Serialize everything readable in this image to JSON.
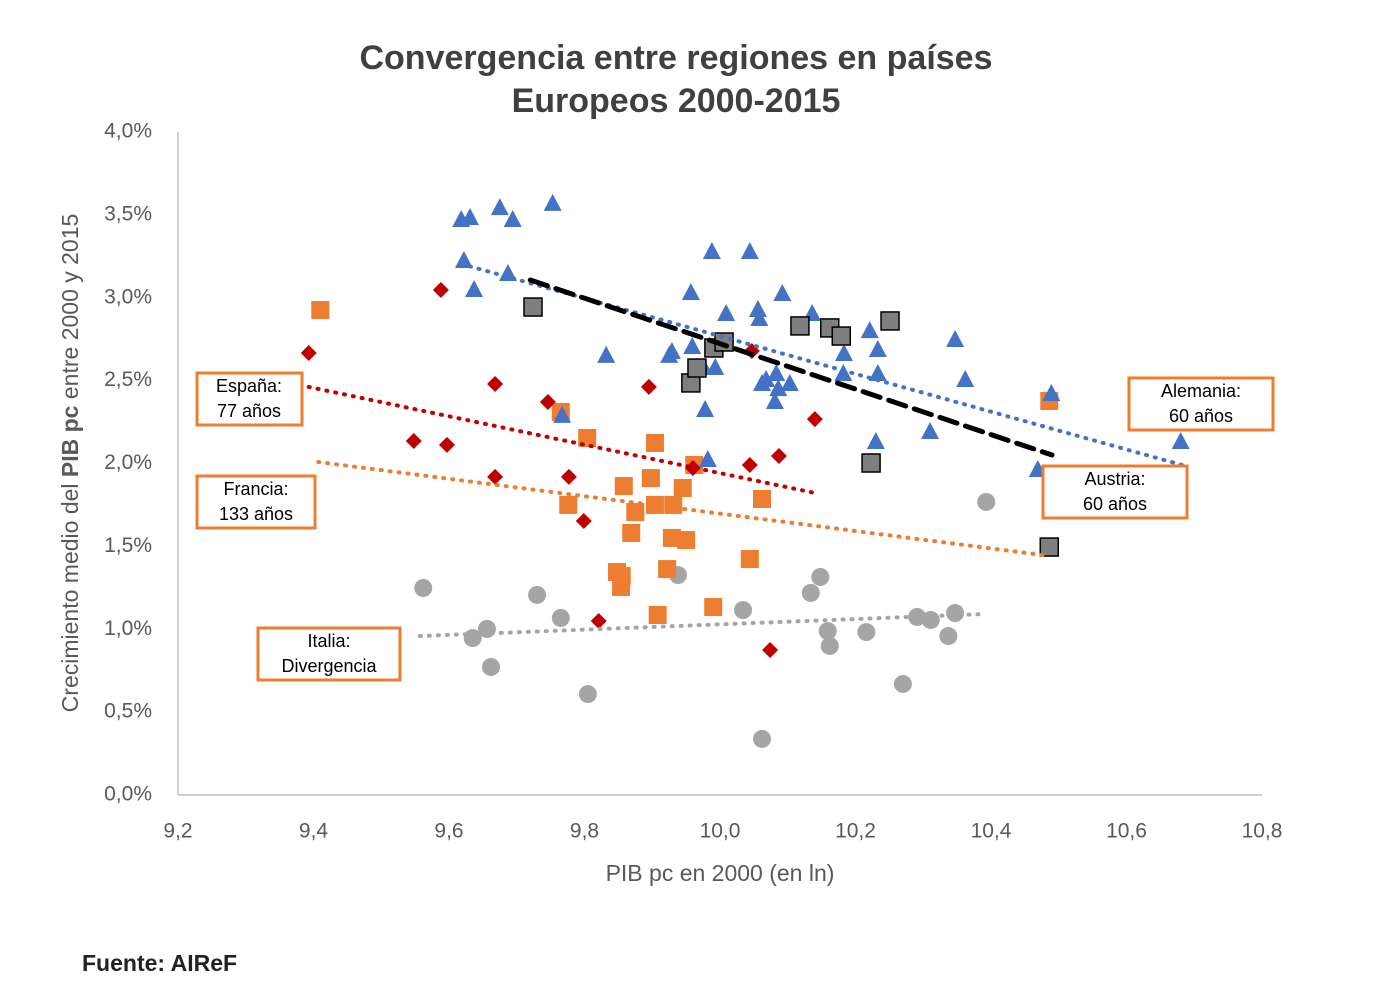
{
  "chart_data": {
    "type": "scatter",
    "title": [
      "Convergencia entre regiones en países",
      "Europeos 2000-2015"
    ],
    "xlabel": "PIB pc en 2000 (en ln)",
    "ylabel": [
      "Crecimiento medio del ",
      "PIB pc",
      " entre 2000 y 2015"
    ],
    "source": "Fuente: AIReF",
    "xlim": [
      9.2,
      10.8
    ],
    "xticks": [
      {
        "value": 9.2,
        "label": "9,2"
      },
      {
        "value": 9.4,
        "label": "9,4"
      },
      {
        "value": 9.6,
        "label": "9,6"
      },
      {
        "value": 9.8,
        "label": "9,8"
      },
      {
        "value": 10.0,
        "label": "10,0"
      },
      {
        "value": 10.2,
        "label": "10,2"
      },
      {
        "value": 10.4,
        "label": "10,4"
      },
      {
        "value": 10.6,
        "label": "10,6"
      },
      {
        "value": 10.8,
        "label": "10,8"
      }
    ],
    "ylim": [
      0,
      4
    ],
    "yticks": [
      {
        "value": 0,
        "label": "0,0%"
      },
      {
        "value": 0.5,
        "label": "0,5%"
      },
      {
        "value": 1.0,
        "label": "1,0%"
      },
      {
        "value": 1.5,
        "label": "1,5%"
      },
      {
        "value": 2.0,
        "label": "2,0%"
      },
      {
        "value": 2.5,
        "label": "2,5%"
      },
      {
        "value": 3.0,
        "label": "3,0%"
      },
      {
        "value": 3.5,
        "label": "3,5%"
      },
      {
        "value": 4.0,
        "label": "4,0%"
      }
    ],
    "grid": false,
    "series": [
      {
        "marker": "circle",
        "color": "#a5a5a5",
        "x": [
          9.562,
          9.635,
          9.656,
          9.662,
          9.73,
          9.765,
          9.805,
          9.938,
          10.034,
          10.062,
          10.134,
          10.148,
          10.159,
          10.162,
          10.216,
          10.27,
          10.291,
          10.311,
          10.337,
          10.347,
          10.393
        ],
        "y": [
          1.249,
          0.947,
          1.002,
          0.772,
          1.207,
          1.068,
          0.609,
          1.327,
          1.116,
          0.338,
          1.219,
          1.315,
          0.989,
          0.899,
          0.983,
          0.67,
          1.074,
          1.056,
          0.959,
          1.098,
          1.768
        ],
        "trend": {
          "x": [
            9.557,
            10.391
          ],
          "y": [
            0.959,
            1.092
          ],
          "color": "#a5a5a5",
          "dash": "dotted"
        }
      },
      {
        "marker": "square",
        "color": "#ed7d31",
        "x": [
          9.41,
          9.765,
          9.804,
          9.776,
          9.858,
          9.875,
          9.869,
          9.848,
          9.854,
          9.855,
          9.904,
          9.898,
          9.904,
          9.922,
          9.929,
          9.95,
          9.931,
          9.945,
          9.962,
          9.908,
          9.99,
          10.044,
          10.062,
          10.486
        ],
        "y": [
          2.926,
          2.311,
          2.154,
          1.75,
          1.864,
          1.707,
          1.581,
          1.345,
          1.255,
          1.321,
          2.124,
          1.912,
          1.75,
          1.363,
          1.551,
          1.538,
          1.75,
          1.852,
          1.991,
          1.086,
          1.134,
          1.424,
          1.786,
          2.377
        ],
        "trend": {
          "x": [
            9.407,
            10.487
          ],
          "y": [
            2.009,
            1.442
          ],
          "color": "#ed7d31",
          "dash": "dotted"
        }
      },
      {
        "marker": "diamond",
        "color": "#c00000",
        "x": [
          9.393,
          9.588,
          9.548,
          9.597,
          9.668,
          9.668,
          9.746,
          9.777,
          9.799,
          9.821,
          9.895,
          9.96,
          10.047,
          10.044,
          10.087,
          10.074,
          10.14
        ],
        "y": [
          2.667,
          3.047,
          2.136,
          2.112,
          2.48,
          1.919,
          2.371,
          1.919,
          1.653,
          1.05,
          2.462,
          1.973,
          2.679,
          1.991,
          2.045,
          0.875,
          2.268
        ],
        "trend": {
          "x": [
            9.393,
            10.14
          ],
          "y": [
            2.462,
            1.822
          ],
          "color": "#c00000",
          "dash": "dotted"
        }
      },
      {
        "marker": "triangle",
        "color": "#4472c4",
        "x": [
          9.618,
          9.631,
          9.675,
          9.694,
          9.753,
          9.622,
          9.637,
          9.687,
          9.832,
          9.925,
          9.929,
          9.957,
          9.959,
          9.966,
          9.976,
          9.978,
          9.982,
          9.988,
          9.993,
          10.009,
          10.044,
          10.056,
          10.058,
          10.062,
          10.068,
          10.081,
          10.083,
          10.086,
          10.092,
          10.103,
          10.136,
          10.182,
          10.183,
          10.221,
          10.23,
          10.233,
          10.233,
          10.31,
          10.347,
          10.362,
          10.469,
          10.489,
          10.68,
          9.767
        ],
        "y": [
          3.469,
          3.481,
          3.541,
          3.469,
          3.566,
          3.222,
          3.047,
          3.143,
          2.649,
          2.649,
          2.673,
          3.029,
          2.703,
          2.576,
          2.576,
          2.323,
          2.021,
          3.276,
          2.576,
          2.902,
          3.276,
          2.926,
          2.872,
          2.48,
          2.504,
          2.371,
          2.54,
          2.449,
          3.023,
          2.48,
          2.902,
          2.54,
          2.661,
          2.799,
          2.13,
          2.685,
          2.54,
          2.19,
          2.745,
          2.504,
          1.961,
          2.419,
          2.13,
          2.287
        ],
        "trend": {
          "x": [
            9.618,
            10.682
          ],
          "y": [
            3.204,
            1.991
          ],
          "color": "#4472c4",
          "dash": "dotted"
        }
      },
      {
        "marker": "square",
        "color": "#7f7f7f",
        "x": [
          9.724,
          9.957,
          9.966,
          9.991,
          10.006,
          10.118,
          10.162,
          10.179,
          10.251,
          10.223,
          10.486
        ],
        "y": [
          2.944,
          2.486,
          2.576,
          2.697,
          2.733,
          2.83,
          2.818,
          2.769,
          2.86,
          2.003,
          1.496
        ],
        "trend": {
          "x": [
            9.72,
            10.49
          ],
          "y": [
            3.107,
            2.051
          ],
          "color": "#000000",
          "dash": "dashed"
        }
      }
    ],
    "annotations": [
      {
        "lines": [
          "España:",
          "77 años"
        ]
      },
      {
        "lines": [
          "Francia:",
          "133 años"
        ]
      },
      {
        "lines": [
          "Italia:",
          "Divergencia"
        ]
      },
      {
        "lines": [
          "Alemania:",
          "60 años"
        ]
      },
      {
        "lines": [
          "Austria:",
          "60 años"
        ]
      }
    ]
  }
}
